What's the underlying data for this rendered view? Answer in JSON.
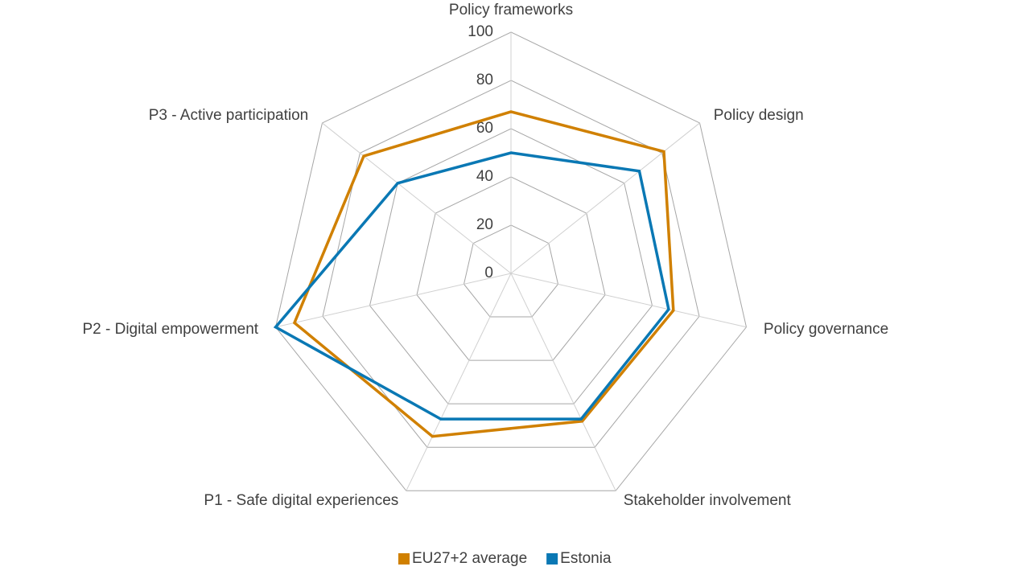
{
  "chart_data": {
    "type": "radar",
    "categories": [
      "Policy frameworks",
      "Policy design",
      "Policy governance",
      "Stakeholder involvement",
      "P1 - Safe digital experiences",
      "P2 - Digital empowerment",
      "P3 - Active participation"
    ],
    "series": [
      {
        "name": "EU27+2 average",
        "color": "#d08000",
        "values": [
          67,
          81,
          69,
          68,
          75,
          92,
          78
        ]
      },
      {
        "name": "Estonia",
        "color": "#0a78b4",
        "values": [
          50,
          68,
          67,
          67,
          67,
          100,
          60
        ]
      }
    ],
    "ylim": [
      0,
      100
    ],
    "yticks": [
      0,
      20,
      40,
      60,
      80,
      100
    ],
    "grid": true,
    "legend": "bottom"
  }
}
